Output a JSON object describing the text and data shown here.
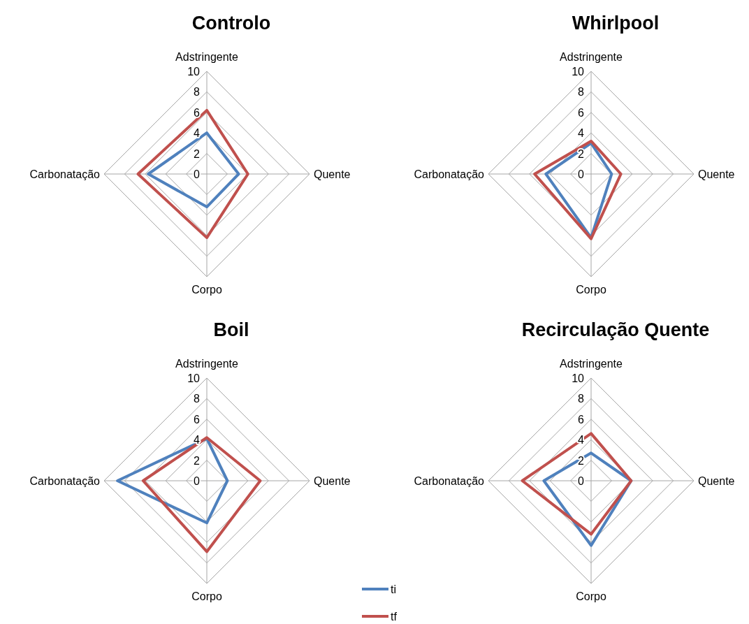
{
  "chart_data": [
    {
      "type": "radar",
      "title": "Controlo",
      "categories": [
        "Adstringente",
        "Quente",
        "Corpo",
        "Carbonatação"
      ],
      "ylim": [
        0,
        10
      ],
      "yticks": [
        0,
        2,
        4,
        6,
        8,
        10
      ],
      "grid": true,
      "legend": false,
      "series": [
        {
          "color": "#4f81bd",
          "values": [
            4.0,
            3.1,
            3.2,
            5.7
          ]
        },
        {
          "color": "#c0504d",
          "values": [
            6.2,
            4.0,
            6.2,
            6.7
          ]
        }
      ]
    },
    {
      "type": "radar",
      "title": "Whirlpool",
      "categories": [
        "Adstringente",
        "Quente",
        "Corpo",
        "Carbonatação"
      ],
      "ylim": [
        0,
        10
      ],
      "yticks": [
        0,
        2,
        4,
        6,
        8,
        10
      ],
      "grid": true,
      "legend": false,
      "series": [
        {
          "color": "#4f81bd",
          "values": [
            3.0,
            2.0,
            6.2,
            4.4
          ]
        },
        {
          "color": "#c0504d",
          "values": [
            3.2,
            2.9,
            6.3,
            5.5
          ]
        }
      ]
    },
    {
      "type": "radar",
      "title": "Boil",
      "categories": [
        "Adstringente",
        "Quente",
        "Corpo",
        "Carbonatação"
      ],
      "ylim": [
        0,
        10
      ],
      "yticks": [
        0,
        2,
        4,
        6,
        8,
        10
      ],
      "grid": true,
      "legend": false,
      "series": [
        {
          "color": "#4f81bd",
          "values": [
            4.1,
            2.0,
            4.1,
            8.7
          ]
        },
        {
          "color": "#c0504d",
          "values": [
            4.2,
            5.2,
            6.9,
            6.2
          ]
        }
      ]
    },
    {
      "type": "radar",
      "title": "Recirculação Quente",
      "categories": [
        "Adstringente",
        "Quente",
        "Corpo",
        "Carbonatação"
      ],
      "ylim": [
        0,
        10
      ],
      "yticks": [
        0,
        2,
        4,
        6,
        8,
        10
      ],
      "grid": true,
      "legend": "bottom left",
      "series": [
        {
          "name": "ti",
          "color": "#4f81bd",
          "values": [
            2.7,
            3.9,
            6.3,
            4.6
          ]
        },
        {
          "name": "tf",
          "color": "#c0504d",
          "values": [
            4.6,
            3.9,
            5.2,
            6.7
          ]
        }
      ]
    }
  ]
}
